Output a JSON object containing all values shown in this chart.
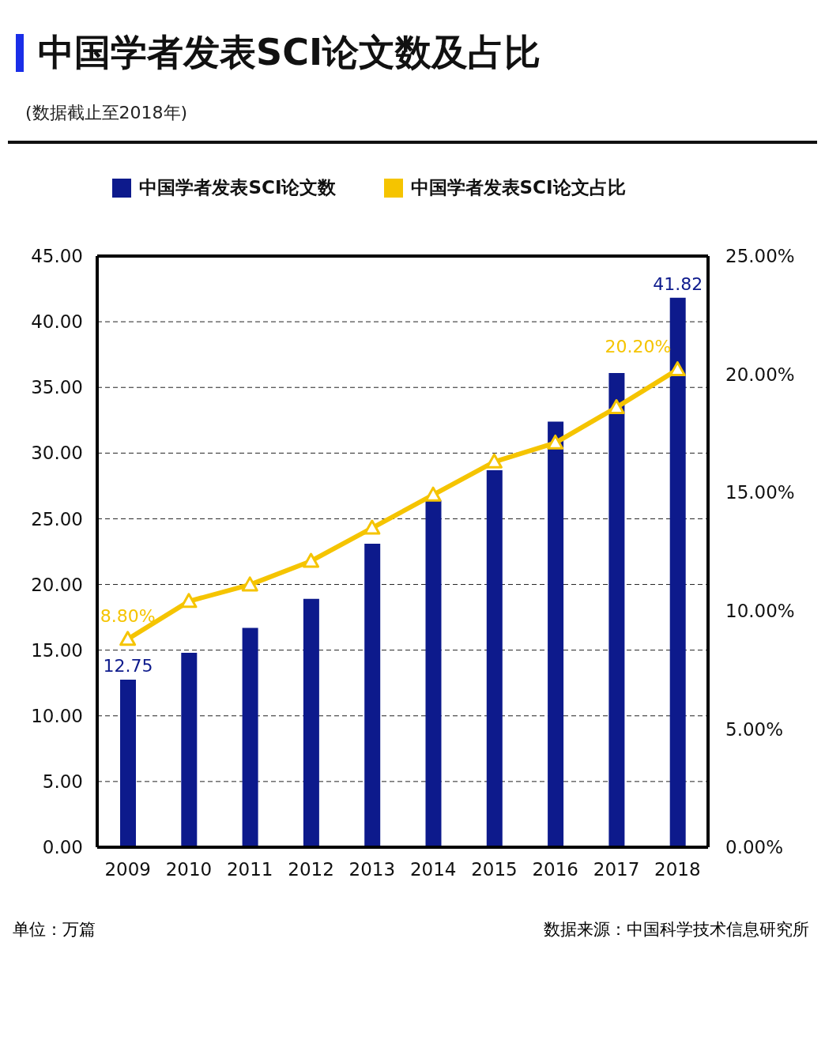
{
  "chart_data": {
    "type": "bar",
    "title": "中国学者发表SCI论文数及占比",
    "subtitle": "(数据截止至2018年)",
    "categories": [
      "2009",
      "2010",
      "2011",
      "2012",
      "2013",
      "2014",
      "2015",
      "2016",
      "2017",
      "2018"
    ],
    "series": [
      {
        "name": "中国学者发表SCI论文数",
        "color": "#0d1a8c",
        "values": [
          12.75,
          14.8,
          16.7,
          18.9,
          23.1,
          26.4,
          28.7,
          32.4,
          36.1,
          41.82
        ],
        "value_labels": [
          "12.75",
          null,
          null,
          null,
          null,
          null,
          null,
          null,
          null,
          "41.82"
        ]
      },
      {
        "name": "中国学者发表SCI论文占比",
        "type": "line",
        "axis": "y2",
        "color": "#f5c400",
        "marker": "triangle",
        "values": [
          8.8,
          10.4,
          11.1,
          12.1,
          13.5,
          14.9,
          16.3,
          17.1,
          18.6,
          20.2
        ],
        "value_labels": [
          "8.80%",
          null,
          null,
          null,
          null,
          null,
          null,
          null,
          null,
          "20.20%"
        ]
      }
    ],
    "ylim": [
      0,
      45
    ],
    "yticks": [
      {
        "value": 0,
        "label": "0.00"
      },
      {
        "value": 5,
        "label": "5.00"
      },
      {
        "value": 10,
        "label": "10.00"
      },
      {
        "value": 15,
        "label": "15.00"
      },
      {
        "value": 20,
        "label": "20.00"
      },
      {
        "value": 25,
        "label": "25.00"
      },
      {
        "value": 30,
        "label": "30.00"
      },
      {
        "value": 35,
        "label": "35.00"
      },
      {
        "value": 40,
        "label": "40.00"
      },
      {
        "value": 45,
        "label": "45.00"
      }
    ],
    "y2lim": [
      0,
      25
    ],
    "y2ticks": [
      {
        "value": 0,
        "label": "0.00%"
      },
      {
        "value": 5,
        "label": "5.00%"
      },
      {
        "value": 10,
        "label": "10.00%"
      },
      {
        "value": 15,
        "label": "15.00%"
      },
      {
        "value": 20,
        "label": "20.00%"
      },
      {
        "value": 25,
        "label": "25.00%"
      }
    ],
    "grid": "y",
    "legend": "top",
    "annotations": [
      "单位：万篇",
      "数据来源：中国科学技术信息研究所"
    ]
  }
}
